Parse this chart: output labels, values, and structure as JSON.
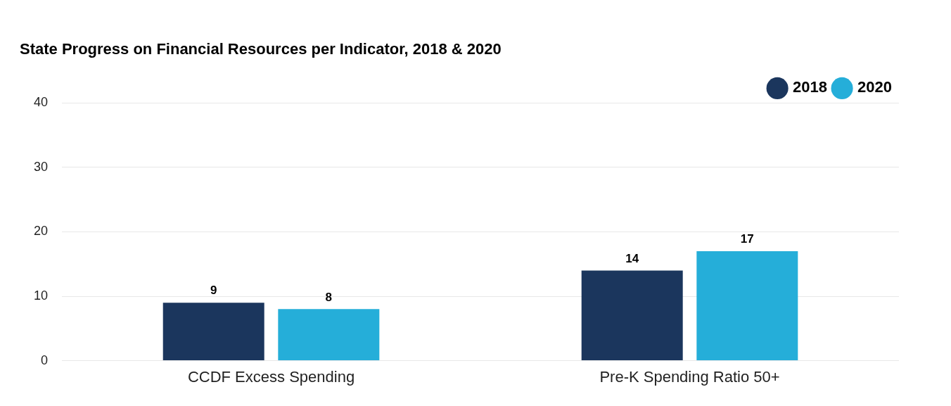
{
  "chart_data": {
    "type": "bar",
    "title": "State Progress on Financial Resources per Indicator, 2018 & 2020",
    "categories": [
      "CCDF Excess Spending",
      "Pre-K Spending Ratio 50+"
    ],
    "series": [
      {
        "name": "2018",
        "color": "#1b365d",
        "values": [
          9,
          14
        ]
      },
      {
        "name": "2020",
        "color": "#25aed9",
        "values": [
          8,
          17
        ]
      }
    ],
    "ylim": [
      0,
      40
    ],
    "yticks": [
      0,
      10,
      20,
      30,
      40
    ],
    "grid": "y",
    "legend": "top right",
    "data_labels": true
  }
}
